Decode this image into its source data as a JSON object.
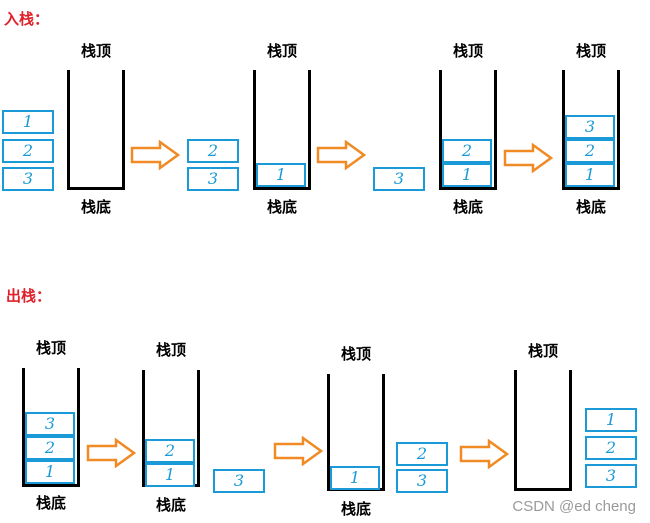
{
  "push": {
    "title": "入栈："
  },
  "pop": {
    "title": "出栈："
  },
  "labels": {
    "top": "栈顶",
    "bottom": "栈底"
  },
  "items": {
    "one": "1",
    "two": "2",
    "three": "3"
  },
  "watermark": "CSDN @ed cheng",
  "colors": {
    "box_border": "#1a9ad6",
    "arrow": "#f08a24",
    "title": "#e0202a"
  }
}
